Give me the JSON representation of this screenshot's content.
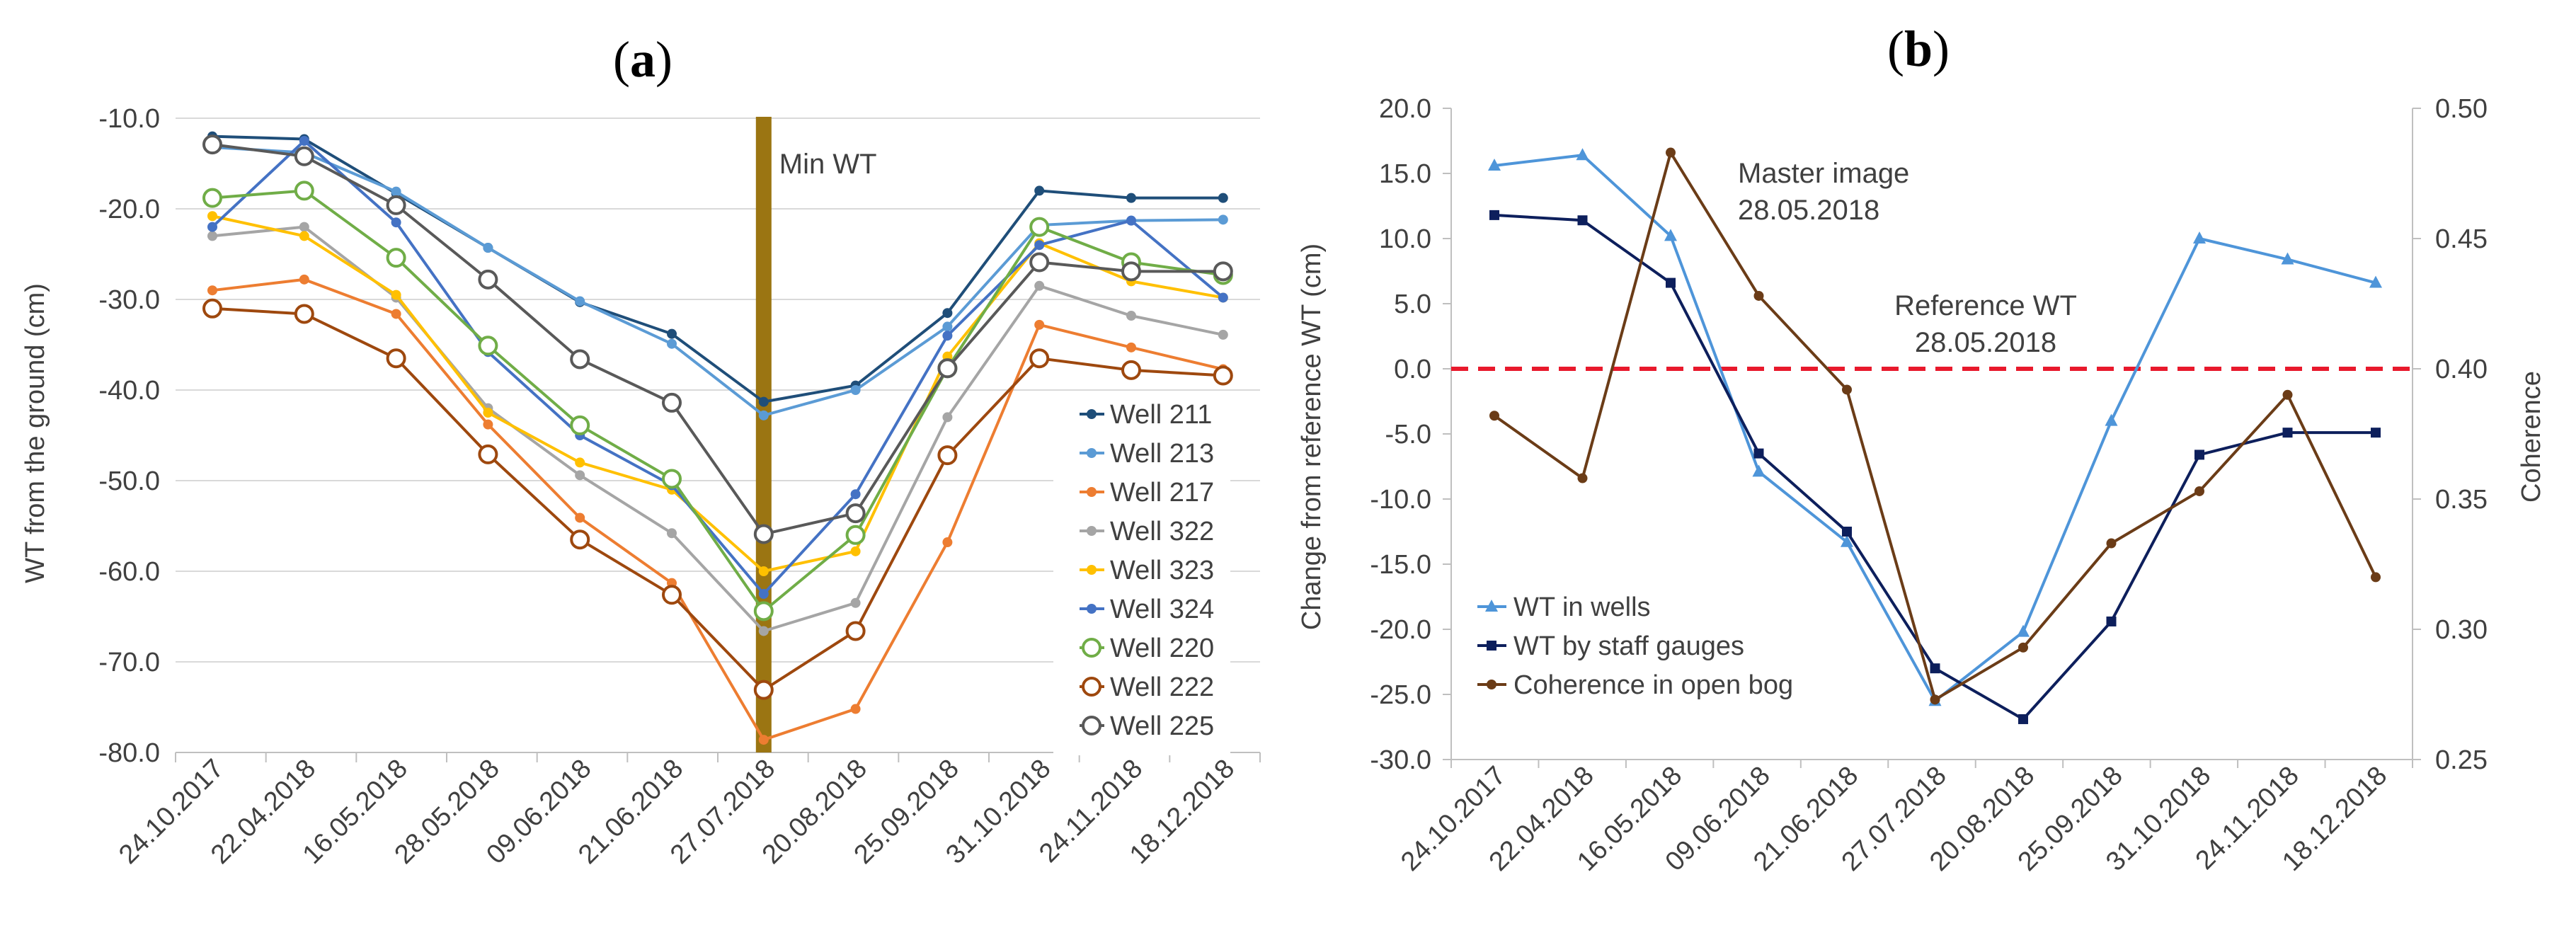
{
  "chart_data": [
    {
      "type": "line",
      "panel_label_open": "(",
      "panel_label_letter": "a",
      "panel_label_close": ")",
      "categories": [
        "24.10.2017",
        "22.04.2018",
        "16.05.2018",
        "28.05.2018",
        "09.06.2018",
        "21.06.2018",
        "27.07.2018",
        "20.08.2018",
        "25.09.2018",
        "31.10.2018",
        "24.11.2018",
        "18.12.2018"
      ],
      "ylabel": "WT from the ground (cm)",
      "ylim": [
        -80,
        -10
      ],
      "yticks": [
        -10,
        -20,
        -30,
        -40,
        -50,
        -60,
        -70,
        -80
      ],
      "ytick_labels": [
        "-10.0",
        "-20.0",
        "-30.0",
        "-40.0",
        "-50.0",
        "-60.0",
        "-70.0",
        "-80.0"
      ],
      "grid": true,
      "legend_position": "right",
      "annotation": {
        "label": "Min WT",
        "category": "27.07.2018",
        "color": "#9b7512"
      },
      "series": [
        {
          "name": "Well 211",
          "color": "#1f4e79",
          "marker": "dot",
          "values": [
            -12,
            -12.3,
            -18.3,
            -24.3,
            -30.3,
            -33.8,
            -41.3,
            -39.5,
            -31.5,
            -18,
            -18.8,
            -18.8
          ]
        },
        {
          "name": "Well 213",
          "color": "#5b9bd5",
          "marker": "dot",
          "values": [
            -13.2,
            -13.8,
            -18.1,
            -24.3,
            -30.2,
            -34.9,
            -42.8,
            -40,
            -33,
            -21.8,
            -21.3,
            -21.2
          ]
        },
        {
          "name": "Well 217",
          "color": "#ed7d31",
          "marker": "dot",
          "values": [
            -29,
            -27.8,
            -31.6,
            -43.8,
            -54.1,
            -61.3,
            -78.6,
            -75.2,
            -56.8,
            -32.8,
            -35.3,
            -37.7
          ]
        },
        {
          "name": "Well 322",
          "color": "#a5a5a5",
          "marker": "dot",
          "values": [
            -23,
            -22,
            -29.8,
            -42,
            -49.4,
            -55.8,
            -66.6,
            -63.5,
            -43,
            -28.5,
            -31.8,
            -33.9
          ]
        },
        {
          "name": "Well 323",
          "color": "#ffc000",
          "marker": "dot",
          "values": [
            -20.8,
            -23,
            -29.5,
            -42.5,
            -48,
            -51,
            -60,
            -57.8,
            -36.3,
            -23.8,
            -28,
            -29.8
          ]
        },
        {
          "name": "Well 324",
          "color": "#4472c4",
          "marker": "dot",
          "values": [
            -22,
            -12.5,
            -21.5,
            -35.8,
            -45,
            -50.5,
            -62.5,
            -51.5,
            -34,
            -24,
            -21.3,
            -29.8
          ]
        },
        {
          "name": "Well 220",
          "color": "#70ad47",
          "marker": "ring",
          "values": [
            -18.8,
            -18,
            -25.4,
            -35.1,
            -43.9,
            -49.8,
            -64.4,
            -56,
            -37.6,
            -22,
            -25.9,
            -27.3
          ]
        },
        {
          "name": "Well 222",
          "color": "#9e480e",
          "marker": "ring",
          "values": [
            -31,
            -31.6,
            -36.5,
            -47.1,
            -56.5,
            -62.6,
            -73.1,
            -66.6,
            -47.2,
            -36.5,
            -37.8,
            -38.4
          ]
        },
        {
          "name": "Well 225",
          "color": "#595959",
          "marker": "ring",
          "values": [
            -12.9,
            -14.2,
            -19.6,
            -27.8,
            -36.6,
            -41.4,
            -55.9,
            -53.6,
            -37.6,
            -25.9,
            -26.9,
            -26.9
          ]
        }
      ]
    },
    {
      "type": "line",
      "panel_label_open": "(",
      "panel_label_letter": "b",
      "panel_label_close": ")",
      "categories": [
        "24.10.2017",
        "22.04.2018",
        "16.05.2018",
        "09.06.2018",
        "21.06.2018",
        "27.07.2018",
        "20.08.2018",
        "25.09.2018",
        "31.10.2018",
        "24.11.2018",
        "18.12.2018"
      ],
      "ylabel": "Change from reference WT (cm)",
      "ylim": [
        -30,
        20
      ],
      "yticks": [
        20,
        15,
        10,
        5,
        0,
        -5,
        -10,
        -15,
        -20,
        -25,
        -30
      ],
      "ytick_labels": [
        "20.0",
        "15.0",
        "10.0",
        "5.0",
        "0.0",
        "-5.0",
        "-10.0",
        "-15.0",
        "-20.0",
        "-25.0",
        "-30.0"
      ],
      "y2label": "Coherence",
      "y2lim": [
        0.25,
        0.5
      ],
      "y2ticks": [
        0.5,
        0.45,
        0.4,
        0.35,
        0.3,
        0.25
      ],
      "y2tick_labels": [
        "0.50",
        "0.45",
        "0.40",
        "0.35",
        "0.30",
        "0.25"
      ],
      "grid": false,
      "legend_position": "bottom-left",
      "reference_line": {
        "value": 0,
        "color": "#e8192c"
      },
      "annotations": [
        {
          "line1": "Master image",
          "line2": "28.05.2018"
        },
        {
          "line1": "Reference WT",
          "line2": "28.05.2018"
        }
      ],
      "series": [
        {
          "name": "WT in wells",
          "color": "#4e95d9",
          "marker": "triangle",
          "axis": "left",
          "values": [
            15.6,
            16.4,
            10.2,
            -7.9,
            -13.3,
            -25.5,
            -20.2,
            -4,
            10,
            8.4,
            6.6
          ]
        },
        {
          "name": "WT by staff gauges",
          "color": "#0d1f5c",
          "marker": "square",
          "axis": "left",
          "values": [
            11.8,
            11.4,
            6.6,
            -6.5,
            -12.5,
            -23,
            -26.9,
            -19.4,
            -6.6,
            -4.9,
            -4.9
          ]
        },
        {
          "name": "Coherence in open bog",
          "color": "#6b3c17",
          "marker": "dot",
          "axis": "right",
          "values": [
            0.382,
            0.358,
            0.483,
            0.428,
            0.392,
            0.273,
            0.293,
            0.333,
            0.353,
            0.39,
            0.32
          ]
        }
      ]
    }
  ]
}
